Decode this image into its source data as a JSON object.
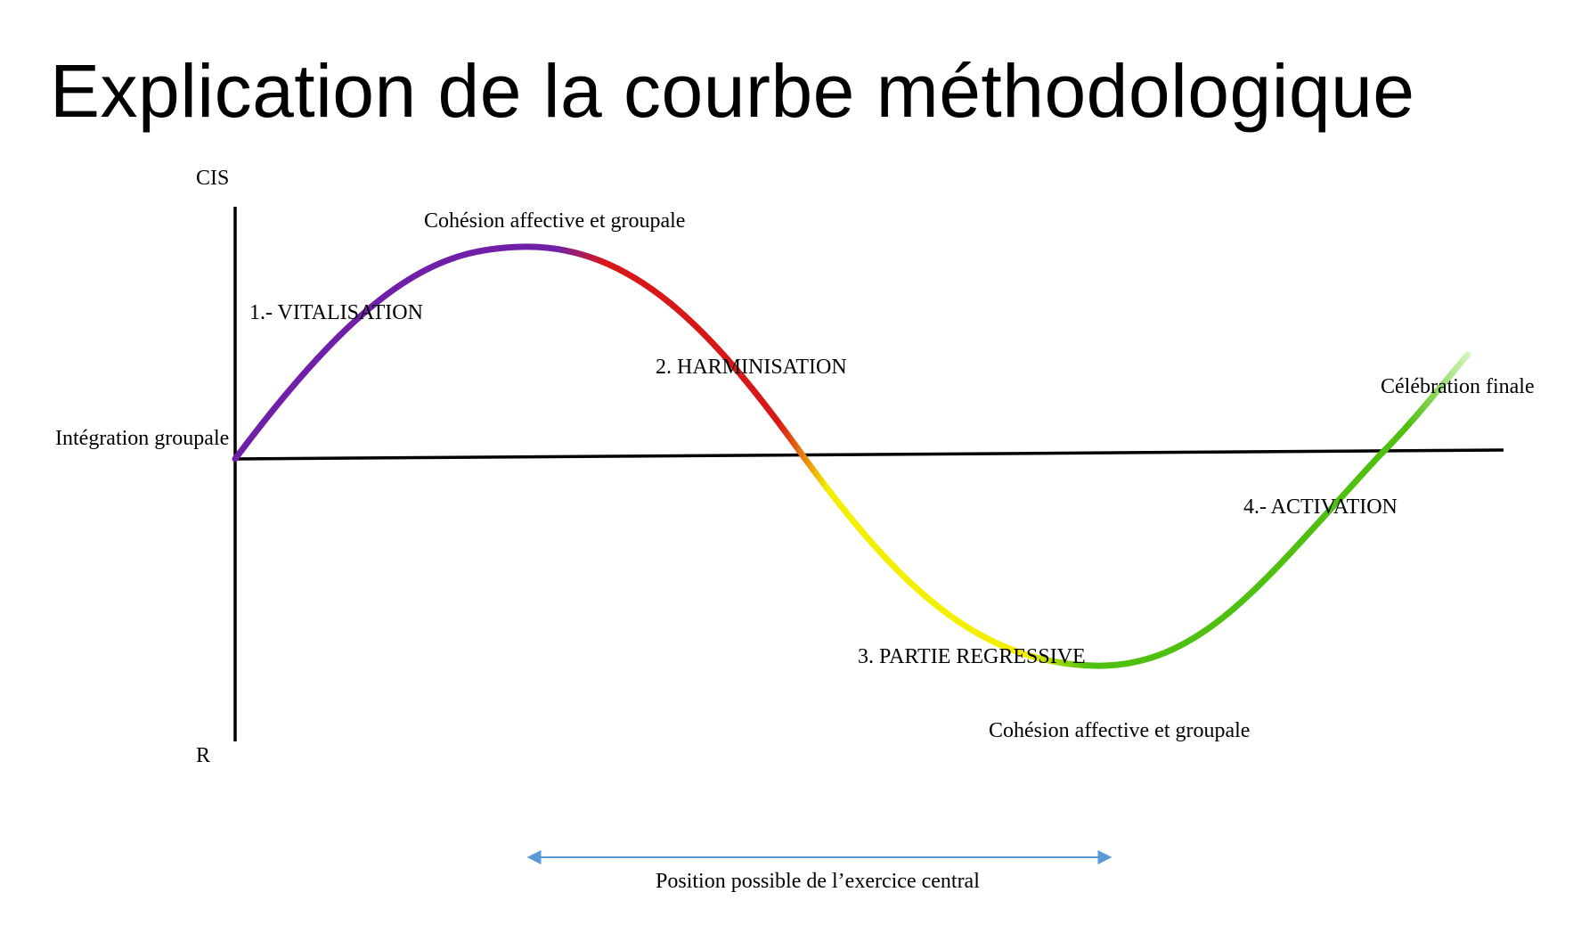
{
  "title": "Explication de la courbe méthodologique",
  "axis": {
    "top_label": "CIS",
    "bottom_label": "R",
    "origin_label": "Intégration groupale"
  },
  "curve_labels": {
    "peak": "Cohésion affective et groupale",
    "phase1": "1.- VITALISATION",
    "phase2": "2. HARMINISATION",
    "phase3": "3. PARTIE REGRESSIVE",
    "trough": "Cohésion affective et groupale",
    "phase4": "4.- ACTIVATION",
    "end": "Célébration finale"
  },
  "range_label": "Position possible de l’exercice central",
  "colors": {
    "phase1": "#7020a8",
    "phase2": "#d81818",
    "phase3": "#f2f000",
    "phase4": "#50c010",
    "axis": "#000000",
    "range_arrow": "#5b9bd5"
  }
}
